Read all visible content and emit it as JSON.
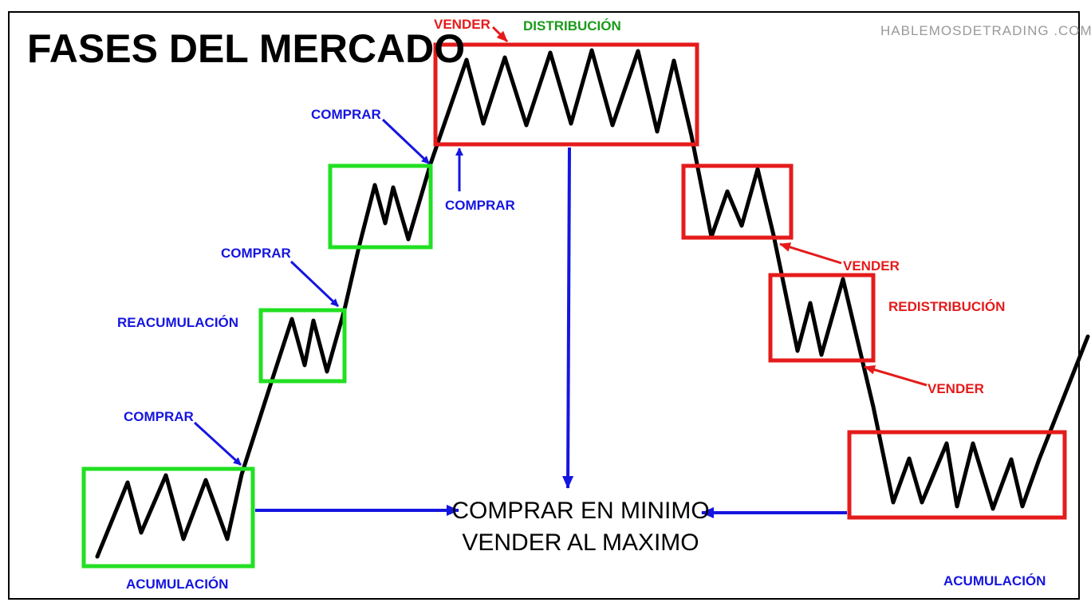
{
  "title": "FASES DEL MERCADO",
  "website": "HABLEMOSDETRADING .COM",
  "center_text": {
    "line1": "COMPRAR EN MINIMO",
    "line2": "VENDER AL MAXIMO"
  },
  "phases": {
    "acumulacion_left": "ACUMULACIÓN",
    "reacumulacion": "REACUMULACIÓN",
    "distribucion": "DISTRIBUCIÓN",
    "redistribucion": "REDISTRIBUCIÓN",
    "acumulacion_right": "ACUMULACIÓN"
  },
  "signals": {
    "comprar_1": "COMPRAR",
    "comprar_2": "COMPRAR",
    "comprar_3": "COMPRAR",
    "comprar_4": "COMPRAR",
    "vender_top": "VENDER",
    "vender_2": "VENDER",
    "vender_3": "VENDER"
  },
  "colors": {
    "buy": "#1515e0",
    "sell": "#e51b1b",
    "accumulation_box": "#22e022",
    "distribution_box": "#e51b1b",
    "distribution_label": "#1a9a1a",
    "price_line": "#000000",
    "website": "#999999"
  }
}
